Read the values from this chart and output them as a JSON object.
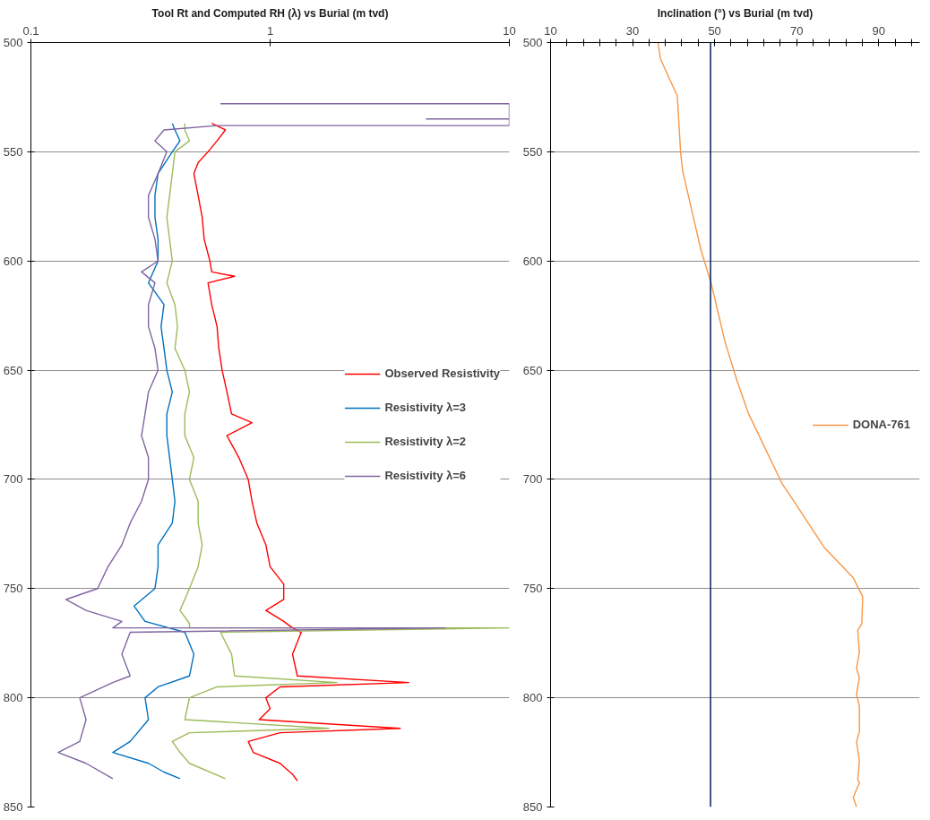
{
  "chart_data": [
    {
      "type": "line",
      "title": "Tool Rt and Computed RH (λ) vs Burial (m tvd)",
      "orientation": "horizontal",
      "log": "x",
      "xlim": [
        0.1,
        10
      ],
      "xticks": [
        0.1,
        1,
        10
      ],
      "ylim": [
        850,
        500
      ],
      "yticks": [
        500,
        550,
        600,
        650,
        700,
        750,
        800,
        850
      ],
      "grid": "y",
      "legend": "right",
      "series": [
        {
          "name": "Observed Resistivity",
          "color": "#ff0000",
          "x": [
            537,
            540,
            545,
            550,
            555,
            560,
            570,
            580,
            590,
            600,
            605,
            607,
            610,
            620,
            630,
            640,
            650,
            660,
            670,
            674,
            680,
            690,
            700,
            710,
            720,
            730,
            740,
            748,
            755,
            760,
            765,
            768,
            770,
            780,
            790,
            793,
            795,
            800,
            805,
            810,
            814,
            816,
            820,
            825,
            830,
            835,
            838
          ],
          "values": [
            0.57,
            0.65,
            0.6,
            0.55,
            0.5,
            0.48,
            0.5,
            0.52,
            0.53,
            0.56,
            0.57,
            0.71,
            0.55,
            0.57,
            0.6,
            0.61,
            0.63,
            0.66,
            0.69,
            0.84,
            0.66,
            0.74,
            0.81,
            0.84,
            0.88,
            0.96,
            1.0,
            1.14,
            1.14,
            0.96,
            1.14,
            1.24,
            1.35,
            1.24,
            1.3,
            3.8,
            1.1,
            0.96,
            1.0,
            0.9,
            3.5,
            1.1,
            0.81,
            0.85,
            1.1,
            1.24,
            1.3
          ]
        },
        {
          "name": "Resistivity λ=3",
          "color": "#0070c0",
          "x": [
            537,
            540,
            545,
            550,
            560,
            570,
            580,
            590,
            600,
            610,
            620,
            630,
            640,
            650,
            660,
            670,
            680,
            690,
            700,
            710,
            720,
            730,
            740,
            750,
            758,
            765,
            770,
            780,
            790,
            795,
            800,
            810,
            820,
            825,
            830,
            834,
            837
          ],
          "values": [
            0.39,
            0.4,
            0.42,
            0.39,
            0.34,
            0.33,
            0.33,
            0.34,
            0.34,
            0.31,
            0.36,
            0.35,
            0.36,
            0.37,
            0.39,
            0.37,
            0.37,
            0.38,
            0.39,
            0.4,
            0.39,
            0.34,
            0.34,
            0.33,
            0.27,
            0.3,
            0.44,
            0.48,
            0.46,
            0.34,
            0.3,
            0.31,
            0.26,
            0.22,
            0.31,
            0.36,
            0.42
          ]
        },
        {
          "name": "Resistivity λ=2",
          "color": "#9bbb59",
          "x": [
            537,
            540,
            545,
            550,
            560,
            570,
            580,
            590,
            600,
            610,
            620,
            630,
            640,
            650,
            660,
            670,
            680,
            690,
            700,
            710,
            720,
            730,
            740,
            750,
            760,
            766,
            768,
            768,
            770,
            780,
            790,
            793,
            795,
            800,
            810,
            814,
            816,
            820,
            825,
            830,
            837
          ],
          "values": [
            0.44,
            0.44,
            0.46,
            0.4,
            0.39,
            0.38,
            0.37,
            0.38,
            0.39,
            0.37,
            0.4,
            0.41,
            0.4,
            0.44,
            0.46,
            0.44,
            0.44,
            0.48,
            0.46,
            0.5,
            0.5,
            0.52,
            0.5,
            0.46,
            0.42,
            0.46,
            0.46,
            10,
            0.62,
            0.69,
            0.71,
            1.9,
            0.6,
            0.46,
            0.44,
            1.76,
            0.46,
            0.39,
            0.42,
            0.46,
            0.65
          ]
        },
        {
          "name": "Resistivity λ=6",
          "color": "#8064a2",
          "x": [
            528,
            528,
            535,
            535,
            535,
            538,
            538,
            540,
            545,
            550,
            560,
            570,
            580,
            590,
            600,
            605,
            610,
            620,
            630,
            640,
            650,
            660,
            670,
            680,
            690,
            700,
            710,
            720,
            730,
            740,
            750,
            755,
            760,
            765,
            768,
            768,
            770,
            780,
            790,
            793,
            800,
            810,
            820,
            825,
            830,
            837
          ],
          "values": [
            0.62,
            10,
            10,
            4.5,
            10,
            10,
            0.6,
            0.36,
            0.33,
            0.37,
            0.34,
            0.31,
            0.31,
            0.33,
            0.34,
            0.29,
            0.33,
            0.31,
            0.31,
            0.33,
            0.34,
            0.31,
            0.3,
            0.29,
            0.31,
            0.31,
            0.29,
            0.26,
            0.24,
            0.21,
            0.19,
            0.14,
            0.17,
            0.24,
            0.22,
            5.4,
            0.26,
            0.24,
            0.26,
            0.22,
            0.16,
            0.17,
            0.16,
            0.13,
            0.17,
            0.22
          ]
        }
      ]
    },
    {
      "type": "line",
      "title": "Inclination (°) vs Burial (m tvd)",
      "orientation": "horizontal",
      "xlim": [
        10,
        100
      ],
      "xticks": [
        10,
        {
          "value": 14,
          "label": null
        },
        {
          "value": 18,
          "label": null
        },
        {
          "value": 22,
          "label": null
        },
        {
          "value": 26,
          "label": null
        },
        30,
        {
          "value": 34,
          "label": null
        },
        {
          "value": 38,
          "label": null
        },
        {
          "value": 42,
          "label": null
        },
        {
          "value": 46,
          "label": null
        },
        50,
        {
          "value": 54,
          "label": null
        },
        {
          "value": 58,
          "label": null
        },
        {
          "value": 62,
          "label": null
        },
        {
          "value": 66,
          "label": null
        },
        70,
        {
          "value": 74,
          "label": null
        },
        {
          "value": 78,
          "label": null
        },
        {
          "value": 82,
          "label": null
        },
        {
          "value": 86,
          "label": null
        },
        90,
        {
          "value": 94,
          "label": null
        },
        {
          "value": 98,
          "label": null
        }
      ],
      "ylim": [
        850,
        500
      ],
      "yticks": [
        500,
        550,
        600,
        650,
        700,
        750,
        800,
        850
      ],
      "grid": "y",
      "legend": "right",
      "ref_lines": [
        {
          "axis": "x",
          "value": 49,
          "label": null,
          "color": "#002060"
        }
      ],
      "series": [
        {
          "name": "DONA-761",
          "color": "#f79646",
          "x": [
            500,
            507.6,
            524.4,
            550,
            558.7,
            595.2,
            609.8,
            637.5,
            655,
            669.6,
            701.8,
            706.2,
            731.1,
            745.1,
            753.6,
            766,
            769,
            779.2,
            786.5,
            790.8,
            798.2,
            804,
            815.7,
            820,
            829,
            837.5,
            838.9,
            845.6,
            850
          ],
          "values": [
            36.2,
            36.8,
            40.9,
            41.7,
            42.2,
            46.7,
            49.1,
            52.6,
            55.5,
            58.2,
            66.4,
            68.0,
            76.7,
            83.8,
            86.1,
            85.9,
            84.9,
            85.3,
            84.6,
            85.3,
            84.6,
            85.3,
            85.3,
            84.6,
            85.3,
            84.9,
            85.3,
            83.8,
            84.6
          ]
        }
      ]
    }
  ]
}
